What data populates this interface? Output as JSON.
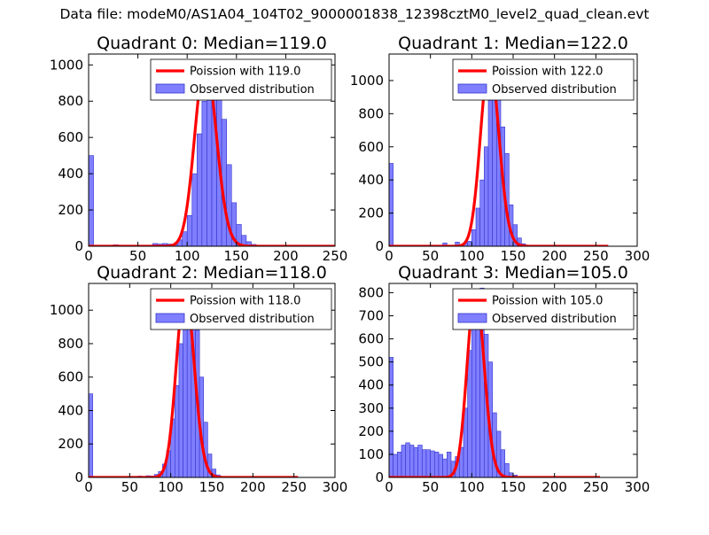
{
  "figure": {
    "suptitle": "Data file: modeM0/AS1A04_104T02_9000001838_12398cztM0_level2_quad_clean.evt"
  },
  "colors": {
    "fit_line": "#ff0000",
    "bars_fill": "#7f7fff",
    "bars_edge": "#3333cc",
    "background": "#ffffff"
  },
  "chart_data": [
    {
      "type": "bar",
      "title": "Quadrant 0: Median=119.0",
      "xlabel": "",
      "ylabel": "",
      "xlim": [
        0,
        250
      ],
      "ylim": [
        0,
        1060
      ],
      "xticks": [
        0,
        50,
        100,
        150,
        200,
        250
      ],
      "yticks": [
        0,
        200,
        400,
        600,
        800,
        1000
      ],
      "legend": {
        "position": "upper-right",
        "entries": [
          "Poission with 119.0",
          "Observed distribution"
        ]
      },
      "series": [
        {
          "name": "Observed distribution",
          "kind": "histogram",
          "bin_width": 5,
          "bins": [
            [
              0,
              500
            ],
            [
              25,
              8
            ],
            [
              50,
              2
            ],
            [
              65,
              15
            ],
            [
              70,
              12
            ],
            [
              75,
              15
            ],
            [
              80,
              12
            ],
            [
              85,
              10
            ],
            [
              90,
              35
            ],
            [
              95,
              80
            ],
            [
              100,
              170
            ],
            [
              105,
              400
            ],
            [
              110,
              620
            ],
            [
              115,
              800
            ],
            [
              120,
              1020
            ],
            [
              125,
              1020
            ],
            [
              130,
              850
            ],
            [
              135,
              700
            ],
            [
              140,
              450
            ],
            [
              145,
              240
            ],
            [
              150,
              120
            ],
            [
              155,
              60
            ],
            [
              160,
              25
            ],
            [
              165,
              10
            ],
            [
              170,
              3
            ]
          ]
        },
        {
          "name": "Poission with 119.0",
          "kind": "poisson",
          "lambda": 119.0,
          "peak": 1020,
          "x_range": [
            0,
            250
          ]
        }
      ]
    },
    {
      "type": "bar",
      "title": "Quadrant 1: Median=122.0",
      "xlabel": "",
      "ylabel": "",
      "xlim": [
        0,
        300
      ],
      "ylim": [
        0,
        1160
      ],
      "xticks": [
        0,
        50,
        100,
        150,
        200,
        250,
        300
      ],
      "yticks": [
        0,
        200,
        400,
        600,
        800,
        1000
      ],
      "legend": {
        "position": "upper-right",
        "entries": [
          "Poission with 122.0",
          "Observed distribution"
        ]
      },
      "series": [
        {
          "name": "Observed distribution",
          "kind": "histogram",
          "bin_width": 5,
          "bins": [
            [
              0,
              500
            ],
            [
              65,
              20
            ],
            [
              80,
              25
            ],
            [
              90,
              20
            ],
            [
              95,
              30
            ],
            [
              100,
              100
            ],
            [
              105,
              230
            ],
            [
              110,
              400
            ],
            [
              115,
              600
            ],
            [
              120,
              880
            ],
            [
              125,
              1100
            ],
            [
              130,
              930
            ],
            [
              135,
              720
            ],
            [
              140,
              560
            ],
            [
              145,
              250
            ],
            [
              150,
              130
            ],
            [
              155,
              50
            ],
            [
              160,
              15
            ],
            [
              165,
              6
            ]
          ]
        },
        {
          "name": "Poission with 122.0",
          "kind": "poisson",
          "lambda": 122.0,
          "peak": 1120,
          "x_range": [
            0,
            265
          ]
        }
      ]
    },
    {
      "type": "bar",
      "title": "Quadrant 2: Median=118.0",
      "xlabel": "",
      "ylabel": "",
      "xlim": [
        0,
        300
      ],
      "ylim": [
        0,
        1160
      ],
      "xticks": [
        0,
        50,
        100,
        150,
        200,
        250,
        300
      ],
      "yticks": [
        0,
        200,
        400,
        600,
        800,
        1000
      ],
      "legend": {
        "position": "upper-right",
        "entries": [
          "Poission with 118.0",
          "Observed distribution"
        ]
      },
      "series": [
        {
          "name": "Observed distribution",
          "kind": "histogram",
          "bin_width": 5,
          "bins": [
            [
              0,
              500
            ],
            [
              60,
              8
            ],
            [
              70,
              10
            ],
            [
              75,
              8
            ],
            [
              80,
              18
            ],
            [
              85,
              35
            ],
            [
              90,
              80
            ],
            [
              95,
              160
            ],
            [
              100,
              350
            ],
            [
              105,
              550
            ],
            [
              110,
              800
            ],
            [
              115,
              1000
            ],
            [
              120,
              1080
            ],
            [
              125,
              950
            ],
            [
              130,
              880
            ],
            [
              135,
              600
            ],
            [
              140,
              330
            ],
            [
              145,
              140
            ],
            [
              150,
              50
            ],
            [
              155,
              15
            ],
            [
              160,
              5
            ]
          ]
        },
        {
          "name": "Poission with 118.0",
          "kind": "poisson",
          "lambda": 118.0,
          "peak": 1120,
          "x_range": [
            0,
            255
          ]
        }
      ]
    },
    {
      "type": "bar",
      "title": "Quadrant 3: Median=105.0",
      "xlabel": "",
      "ylabel": "",
      "xlim": [
        0,
        300
      ],
      "ylim": [
        0,
        840
      ],
      "xticks": [
        0,
        50,
        100,
        150,
        200,
        250,
        300
      ],
      "yticks": [
        0,
        100,
        200,
        300,
        400,
        500,
        600,
        700,
        800
      ],
      "legend": {
        "position": "upper-right",
        "entries": [
          "Poission with 105.0",
          "Observed distribution"
        ]
      },
      "series": [
        {
          "name": "Observed distribution",
          "kind": "histogram",
          "bin_width": 5,
          "bins": [
            [
              0,
              520
            ],
            [
              5,
              100
            ],
            [
              10,
              110
            ],
            [
              15,
              140
            ],
            [
              20,
              150
            ],
            [
              25,
              140
            ],
            [
              30,
              130
            ],
            [
              35,
              140
            ],
            [
              40,
              120
            ],
            [
              45,
              120
            ],
            [
              50,
              115
            ],
            [
              55,
              110
            ],
            [
              60,
              100
            ],
            [
              65,
              80
            ],
            [
              70,
              110
            ],
            [
              75,
              70
            ],
            [
              80,
              90
            ],
            [
              85,
              130
            ],
            [
              90,
              300
            ],
            [
              95,
              550
            ],
            [
              100,
              700
            ],
            [
              105,
              800
            ],
            [
              110,
              820
            ],
            [
              115,
              620
            ],
            [
              120,
              500
            ],
            [
              125,
              280
            ],
            [
              130,
              200
            ],
            [
              135,
              120
            ],
            [
              140,
              60
            ],
            [
              145,
              20
            ],
            [
              150,
              10
            ]
          ]
        },
        {
          "name": "Poission with 105.0",
          "kind": "poisson",
          "lambda": 105.0,
          "peak": 810,
          "x_range": [
            0,
            255
          ]
        }
      ]
    }
  ]
}
